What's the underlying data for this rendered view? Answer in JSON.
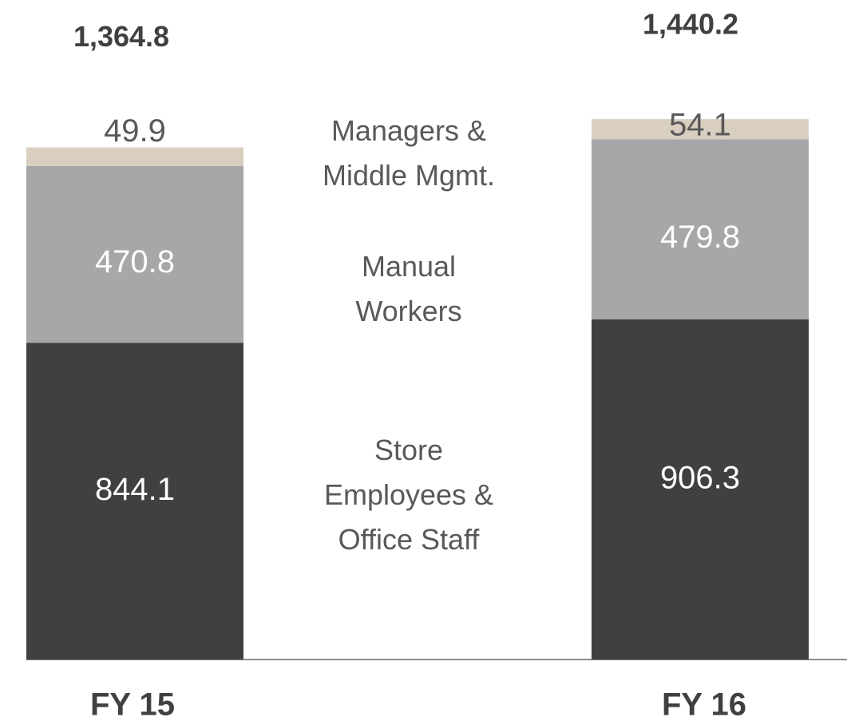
{
  "chart_data": {
    "type": "stacked_bar",
    "categories": [
      "FY 15",
      "FY 16"
    ],
    "series": [
      {
        "name": "Store Employees & Office Staff",
        "color": "#404040",
        "values": [
          844.1,
          906.3
        ]
      },
      {
        "name": "Manual Workers",
        "color": "#a7a7a9",
        "values": [
          470.8,
          479.8
        ]
      },
      {
        "name": "Managers & Middle Mgmt.",
        "color": "#d9cfc0",
        "values": [
          49.9,
          54.1
        ]
      }
    ],
    "totals": {
      "values": [
        1364.8,
        1440.2
      ],
      "value_labels": [
        "1,364.8",
        "1,440.2"
      ]
    }
  }
}
